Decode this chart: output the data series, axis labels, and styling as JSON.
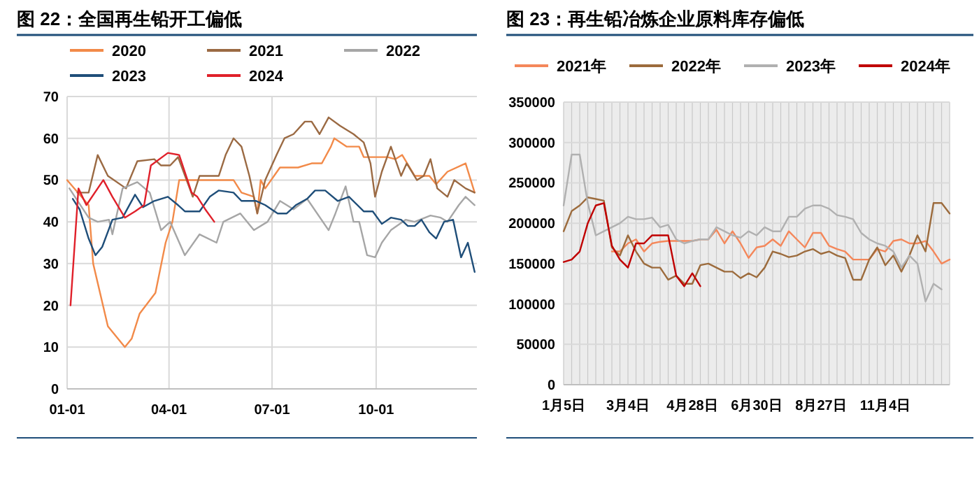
{
  "chart_data": [
    {
      "type": "line",
      "title": "图 22：全国再生铅开工偏低",
      "legend": "top",
      "grid": true,
      "ylim": [
        0,
        70
      ],
      "yticks": [
        0,
        10,
        20,
        30,
        40,
        50,
        60,
        70
      ],
      "xlim": [
        "--01-01",
        "--12-29"
      ],
      "xticks": [
        {
          "value": "--01-01",
          "label": "01-01"
        },
        {
          "value": "--04-01",
          "label": "04-01"
        },
        {
          "value": "--07-01",
          "label": "07-01"
        },
        {
          "value": "--10-01",
          "label": "10-01"
        }
      ],
      "series": [
        {
          "name": "2020",
          "color": "#f28a49",
          "x": [
            "--01-01",
            "--01-20",
            "--01-24",
            "--02-06",
            "--02-21",
            "--02-27",
            "--03-06",
            "--03-20",
            "--03-29",
            "--04-04",
            "--04-10",
            "--05-28",
            "--06-04",
            "--06-15",
            "--06-18",
            "--06-21",
            "--06-25",
            "--07-08",
            "--07-24",
            "--08-05",
            "--08-14",
            "--08-22",
            "--08-25",
            "--09-05",
            "--09-16",
            "--09-20",
            "--10-11",
            "--10-18",
            "--10-24",
            "--11-04",
            "--11-17",
            "--11-23",
            "--12-03",
            "--12-19",
            "--12-27"
          ],
          "values": [
            50,
            44,
            30,
            15,
            10,
            12,
            18,
            23,
            35,
            40,
            50,
            50,
            47,
            46,
            42,
            50,
            48,
            53,
            53,
            54,
            54,
            58,
            60,
            58,
            58,
            55.5,
            55.5,
            55,
            56,
            51,
            51,
            49,
            52,
            54,
            47
          ]
        },
        {
          "name": "2021",
          "color": "#9b6a43",
          "x": [
            "--01-10",
            "--01-20",
            "--01-28",
            "--02-06",
            "--02-22",
            "--03-04",
            "--03-19",
            "--03-25",
            "--04-02",
            "--04-09",
            "--04-22",
            "--04-28",
            "--05-15",
            "--05-21",
            "--05-28",
            "--06-04",
            "--06-11",
            "--06-18",
            "--06-25",
            "--07-05",
            "--07-12",
            "--07-20",
            "--07-30",
            "--08-05",
            "--08-12",
            "--08-20",
            "--08-30",
            "--09-11",
            "--09-20",
            "--09-26",
            "--09-30",
            "--10-06",
            "--10-14",
            "--10-23",
            "--10-28",
            "--11-06",
            "--11-12",
            "--11-18",
            "--11-24",
            "--12-03",
            "--12-09",
            "--12-19",
            "--12-27"
          ],
          "values": [
            47,
            47,
            56,
            51,
            48,
            54.5,
            55,
            53.5,
            53.5,
            55.5,
            46,
            51,
            51,
            56,
            60,
            58,
            51,
            42,
            50,
            56,
            60,
            61,
            64,
            64,
            61,
            65,
            63,
            61,
            59,
            54,
            46,
            52,
            58,
            51,
            54,
            50,
            51,
            55,
            48,
            46,
            50,
            48,
            47
          ]
        },
        {
          "name": "2022",
          "color": "#a6a6a6",
          "x": [
            "--01-03",
            "--01-20",
            "--01-28",
            "--02-07",
            "--02-10",
            "--02-19",
            "--03-04",
            "--03-15",
            "--03-25",
            "--04-02",
            "--04-15",
            "--04-28",
            "--05-13",
            "--05-19",
            "--06-03",
            "--06-15",
            "--06-27",
            "--07-08",
            "--07-20",
            "--08-01",
            "--08-20",
            "--08-26",
            "--09-04",
            "--09-11",
            "--09-16",
            "--09-23",
            "--09-30",
            "--10-06",
            "--10-14",
            "--10-27",
            "--11-04",
            "--11-18",
            "--11-27",
            "--12-03",
            "--12-13",
            "--12-19",
            "--12-27"
          ],
          "values": [
            48,
            41,
            40,
            40.5,
            37,
            48,
            49.5,
            47,
            38,
            40,
            32,
            37,
            35,
            40,
            42,
            38,
            40,
            45,
            43,
            45.5,
            38,
            42,
            48.5,
            40,
            40,
            32,
            31.5,
            35,
            38,
            40.5,
            40,
            41.5,
            41,
            40,
            44,
            46,
            44
          ]
        },
        {
          "name": "2023",
          "color": "#1f4e79",
          "x": [
            "--01-06",
            "--01-12",
            "--01-20",
            "--01-26",
            "--02-01",
            "--02-10",
            "--02-19",
            "--03-02",
            "--03-09",
            "--03-19",
            "--03-31",
            "--04-09",
            "--04-15",
            "--04-28",
            "--05-07",
            "--05-15",
            "--05-28",
            "--06-04",
            "--06-17",
            "--06-25",
            "--07-06",
            "--07-14",
            "--07-22",
            "--08-01",
            "--08-08",
            "--08-17",
            "--08-28",
            "--09-07",
            "--09-20",
            "--09-28",
            "--10-06",
            "--10-14",
            "--10-23",
            "--10-29",
            "--11-04",
            "--11-10",
            "--11-17",
            "--11-23",
            "--11-30",
            "--12-08",
            "--12-15",
            "--12-21",
            "--12-27"
          ],
          "values": [
            45.5,
            43,
            36,
            32,
            34,
            40.5,
            41,
            46.5,
            43.5,
            45,
            46,
            44,
            42.5,
            42.5,
            46,
            47.5,
            47,
            45,
            45,
            44,
            42,
            42,
            44,
            45.5,
            47.5,
            47.5,
            45,
            46,
            42.5,
            42.5,
            39.5,
            41,
            40.5,
            39,
            39,
            40.5,
            37.5,
            36,
            40,
            40.5,
            31.5,
            35,
            28
          ]
        },
        {
          "name": "2024",
          "color": "#e0202a",
          "x": [
            "--01-04",
            "--01-11",
            "--01-18",
            "--02-02",
            "--02-10",
            "--02-21",
            "--03-02",
            "--03-10",
            "--03-16",
            "--03-31",
            "--04-10",
            "--04-21",
            "--04-26",
            "--05-03",
            "--05-11"
          ],
          "values": [
            20,
            48,
            44,
            50,
            46,
            41,
            42.5,
            44,
            53.5,
            56.5,
            56,
            47,
            46,
            43,
            40
          ]
        }
      ]
    },
    {
      "type": "line",
      "title": "图 23：再生铅冶炼企业原料库存偏低",
      "legend": "top",
      "grid": true,
      "ylim": [
        0,
        350000
      ],
      "yticks": [
        0,
        50000,
        100000,
        150000,
        200000,
        250000,
        300000,
        350000
      ],
      "categories": [
        "1月5日",
        null,
        null,
        null,
        null,
        null,
        null,
        null,
        "3月4日",
        null,
        null,
        null,
        null,
        null,
        null,
        null,
        "4月28日",
        null,
        null,
        null,
        null,
        null,
        null,
        null,
        "6月30日",
        null,
        null,
        null,
        null,
        null,
        null,
        null,
        "8月27日",
        null,
        null,
        null,
        null,
        null,
        null,
        null,
        "11月4日",
        null,
        null,
        null,
        null,
        null,
        null,
        null,
        null
      ],
      "series": [
        {
          "name": "2021年",
          "color": "#f4875a",
          "values": [
            null,
            null,
            null,
            null,
            null,
            null,
            165000,
            165000,
            175000,
            180000,
            165000,
            175000,
            177000,
            178000,
            178000,
            178000,
            178000,
            180000,
            180000,
            192000,
            175000,
            190000,
            175000,
            157000,
            170000,
            172000,
            180000,
            172000,
            190000,
            180000,
            170000,
            188000,
            188000,
            172000,
            168000,
            165000,
            155000,
            155000,
            155000,
            168000,
            165000,
            178000,
            180000,
            175000,
            175000,
            178000,
            165000,
            150000,
            155000
          ]
        },
        {
          "name": "2022年",
          "color": "#9c6b3c",
          "values": [
            190000,
            215000,
            222000,
            232000,
            230000,
            228000,
            170000,
            160000,
            185000,
            165000,
            150000,
            145000,
            145000,
            130000,
            135000,
            125000,
            125000,
            148000,
            150000,
            145000,
            140000,
            140000,
            132000,
            138000,
            133000,
            145000,
            165000,
            162000,
            158000,
            160000,
            165000,
            168000,
            162000,
            165000,
            160000,
            157000,
            130000,
            130000,
            155000,
            170000,
            148000,
            160000,
            140000,
            160000,
            185000,
            165000,
            225000,
            225000,
            212000
          ]
        },
        {
          "name": "2023年",
          "color": "#b0b0b0",
          "values": [
            222000,
            285000,
            285000,
            225000,
            185000,
            190000,
            195000,
            200000,
            208000,
            205000,
            205000,
            207000,
            195000,
            198000,
            180000,
            175000,
            178000,
            180000,
            180000,
            195000,
            190000,
            185000,
            182000,
            190000,
            185000,
            195000,
            190000,
            190000,
            208000,
            208000,
            218000,
            222000,
            222000,
            218000,
            210000,
            208000,
            205000,
            188000,
            180000,
            175000,
            172000,
            165000,
            145000,
            160000,
            150000,
            103000,
            125000,
            118000,
            null
          ]
        },
        {
          "name": "2024年",
          "color": "#c00000",
          "values": [
            152000,
            155000,
            165000,
            200000,
            222000,
            225000,
            172000,
            155000,
            145000,
            175000,
            175000,
            185000,
            185000,
            185000,
            135000,
            122000,
            138000,
            122000,
            null,
            null,
            null,
            null,
            null,
            null,
            null,
            null,
            null,
            null,
            null,
            null,
            null,
            null,
            null,
            null,
            null,
            null,
            null,
            null,
            null,
            null,
            null,
            null,
            null,
            null,
            null,
            null,
            null,
            null,
            null
          ]
        }
      ]
    }
  ]
}
